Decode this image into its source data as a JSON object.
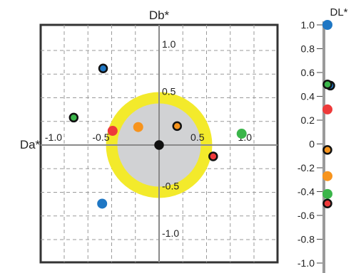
{
  "chart_data": [
    {
      "type": "scatter",
      "title": "",
      "xlabel": "Da*",
      "ylabel": "Db*",
      "xlim": [
        -1.25,
        1.25
      ],
      "ylim": [
        -1.25,
        1.25
      ],
      "grid": true,
      "x_tick_labels": [
        "-1.0",
        "-0.5",
        "0.5",
        "1.0"
      ],
      "y_tick_labels": [
        "1.0",
        "0.5",
        "-0.5",
        "-1.0"
      ],
      "inner_circle_radius": 0.44,
      "outer_circle_radius": 0.56,
      "colors": {
        "inner_circle": "#d1d2d4",
        "outer_ring": "#f3ea2b",
        "blue": "#1f77c4",
        "green": "#3bb54a",
        "red": "#ee3a3a",
        "orange": "#f7941d",
        "black": "#111111"
      },
      "points": [
        {
          "x": -0.59,
          "y": 0.81,
          "color": "#1f77c4",
          "outlined": true
        },
        {
          "x": -0.9,
          "y": 0.29,
          "color": "#3bb54a",
          "outlined": true
        },
        {
          "x": -0.49,
          "y": 0.15,
          "color": "#ee3a3a",
          "outlined": false
        },
        {
          "x": -0.22,
          "y": 0.19,
          "color": "#f7941d",
          "outlined": false
        },
        {
          "x": 0.19,
          "y": 0.2,
          "color": "#f7941d",
          "outlined": true
        },
        {
          "x": 0.87,
          "y": 0.12,
          "color": "#3bb54a",
          "outlined": false
        },
        {
          "x": 0.57,
          "y": -0.12,
          "color": "#ee3a3a",
          "outlined": true
        },
        {
          "x": -0.6,
          "y": -0.62,
          "color": "#1f77c4",
          "outlined": false
        },
        {
          "x": 0.0,
          "y": 0.0,
          "color": "#111111",
          "outlined": true
        }
      ]
    },
    {
      "type": "scatter",
      "title": "DL*",
      "ylim": [
        -1.05,
        1.0
      ],
      "y_tick_labels": [
        "1.0",
        "0.8",
        "0.6",
        "0.4",
        "0.2",
        "0",
        "-0.2",
        "-0.4",
        "-0.6",
        "-0.8",
        "-1.0"
      ],
      "colors": {
        "axis": "#9a9a9a"
      },
      "points": [
        {
          "y": 1.0,
          "color": "#1f77c4",
          "outlined": false
        },
        {
          "y": 0.49,
          "color": "#1f77c4",
          "outlined": true
        },
        {
          "y": 0.5,
          "color": "#3bb54a",
          "outlined": true
        },
        {
          "y": 0.29,
          "color": "#ee3a3a",
          "outlined": false
        },
        {
          "y": -0.05,
          "color": "#f7941d",
          "outlined": true
        },
        {
          "y": -0.27,
          "color": "#f7941d",
          "outlined": false
        },
        {
          "y": -0.42,
          "color": "#3bb54a",
          "outlined": false
        },
        {
          "y": -0.5,
          "color": "#ee3a3a",
          "outlined": true
        }
      ]
    }
  ]
}
